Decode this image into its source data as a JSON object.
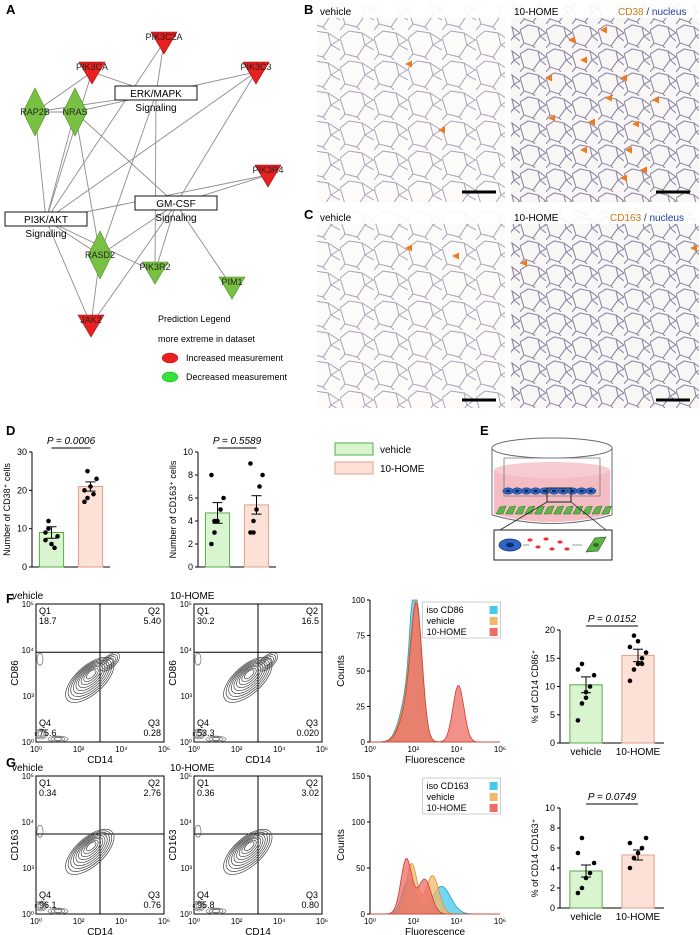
{
  "figure": {
    "panels": [
      "A",
      "B",
      "C",
      "D",
      "E",
      "F",
      "G"
    ],
    "network": {
      "genes_up": [
        {
          "name": "PIK3C2A",
          "x": 164,
          "y": 42
        },
        {
          "name": "PIK3CA",
          "x": 92,
          "y": 72
        },
        {
          "name": "PIK3C3",
          "x": 256,
          "y": 72
        },
        {
          "name": "PIK3R4",
          "x": 268,
          "y": 175
        },
        {
          "name": "JAK2",
          "x": 91,
          "y": 325
        }
      ],
      "genes_down_diamond": [
        {
          "name": "RAP2B",
          "x": 35,
          "y": 112
        },
        {
          "name": "NRAS",
          "x": 75,
          "y": 112
        },
        {
          "name": "RASD2",
          "x": 100,
          "y": 255
        }
      ],
      "genes_down_tri": [
        {
          "name": "PIK3R2",
          "x": 155,
          "y": 272
        },
        {
          "name": "PIM1",
          "x": 232,
          "y": 287
        }
      ],
      "pathways": [
        {
          "name": "ERK/MAPK",
          "sub": "Signaling",
          "x": 156,
          "y": 94
        },
        {
          "name": "GM-CSF",
          "sub": "Signaling",
          "x": 176,
          "y": 204
        },
        {
          "name": "PI3K/AKT",
          "sub": "Signaling",
          "x": 46,
          "y": 220
        }
      ],
      "legend": {
        "title": "Prediction Legend",
        "subtitle": "more extreme in dataset",
        "increased": "Increased measurement",
        "decreased": "Decreased measurement"
      }
    },
    "histology": {
      "vehicle": "vehicle",
      "treated": "10-HOME",
      "b_marker": "CD38",
      "c_marker": "CD163",
      "sep": " / ",
      "nucleus": "nucleus"
    },
    "flow": {
      "f_ylabel": "CD86",
      "g_ylabel": "CD163",
      "xlabel": "CD14",
      "ticks": [
        "10⁰",
        "10²",
        "10⁴",
        "10⁶"
      ],
      "yticks": [
        "10⁰",
        "10³",
        "10⁴",
        "10⁵"
      ],
      "F_vehicle": {
        "title": "vehicle",
        "Q1": "18.7",
        "Q2": "5.40",
        "Q3": "0.28",
        "Q4": "75.6"
      },
      "F_home": {
        "title": "10-HOME",
        "Q1": "30.2",
        "Q2": "16.5",
        "Q3": "0.020",
        "Q4": "53.3"
      },
      "G_vehicle": {
        "title": "vehicle",
        "Q1": "0.34",
        "Q2": "2.76",
        "Q3": "0.76",
        "Q4": "96.1"
      },
      "G_home": {
        "title": "10-HOME",
        "Q1": "0.36",
        "Q2": "3.02",
        "Q3": "0.80",
        "Q4": "95.8"
      },
      "qlabels": [
        "Q1",
        "Q2",
        "Q3",
        "Q4"
      ],
      "hist_ylabel": "Counts",
      "hist_xlabel": "Fluorescence",
      "F_hist_legend": [
        "iso CD86",
        "vehicle",
        "10-HOME"
      ],
      "G_hist_legend": [
        "iso CD163",
        "vehicle",
        "10-HOME"
      ]
    },
    "colors": {
      "up": "#e8201f",
      "down": "#79c142",
      "vehicle_bar": "#d9f5cf",
      "home_bar": "#fde1d6",
      "cd38": "#d4781c",
      "nucleus": "#1f3e9e",
      "iso": "#45c8ec",
      "vehicle_hist": "#f2b96b",
      "home_hist": "#ee6b63"
    }
  },
  "chart_data": [
    {
      "type": "bar",
      "panel": "D-left",
      "categories": [
        "vehicle",
        "10-HOME"
      ],
      "values": [
        9,
        21
      ],
      "errors": [
        1.5,
        1.2
      ],
      "points": [
        [
          7,
          10,
          6,
          5,
          8,
          9,
          12
        ],
        [
          17,
          25,
          21,
          19,
          23,
          20,
          18
        ]
      ],
      "ylabel": "Number of CD38⁺ cells",
      "ylim": [
        0,
        30
      ],
      "yticks": [
        0,
        10,
        20,
        30
      ],
      "annotation": "P = 0.0006"
    },
    {
      "type": "bar",
      "panel": "D-right",
      "categories": [
        "vehicle",
        "10-HOME"
      ],
      "values": [
        4.7,
        5.4
      ],
      "errors": [
        0.9,
        0.8
      ],
      "points": [
        [
          2,
          3,
          4,
          5,
          6,
          8,
          4
        ],
        [
          3,
          4,
          5,
          7,
          8,
          9,
          3
        ]
      ],
      "ylabel": "Number of CD163⁺ cells",
      "ylim": [
        0,
        10
      ],
      "yticks": [
        0,
        2,
        4,
        6,
        8,
        10
      ],
      "annotation": "P = 0.5589"
    },
    {
      "type": "bar",
      "panel": "F-right",
      "categories": [
        "vehicle",
        "10-HOME"
      ],
      "values": [
        10.3,
        15.5
      ],
      "errors": [
        1.4,
        1.1
      ],
      "points": [
        [
          4,
          7,
          9,
          10,
          12,
          13,
          14,
          8
        ],
        [
          11,
          13,
          14,
          15,
          16,
          17,
          19,
          18,
          14
        ]
      ],
      "ylabel": "% of CD14 CD86⁺",
      "ylim": [
        0,
        20
      ],
      "yticks": [
        0,
        5,
        10,
        15,
        20
      ],
      "annotation": "P = 0.0152"
    },
    {
      "type": "bar",
      "panel": "G-right",
      "categories": [
        "vehicle",
        "10-HOME"
      ],
      "values": [
        3.7,
        5.3
      ],
      "errors": [
        0.6,
        0.5
      ],
      "points": [
        [
          1.5,
          2.0,
          3.0,
          3.5,
          4.5,
          5.5,
          7.0
        ],
        [
          4,
          5,
          5.5,
          6,
          7,
          6.5
        ]
      ],
      "ylabel": "% of CD14 CD163⁺",
      "ylim": [
        0,
        10
      ],
      "yticks": [
        0,
        2,
        4,
        6,
        8,
        10
      ],
      "annotation": "P = 0.0749"
    }
  ],
  "legend_d": {
    "vehicle": "vehicle",
    "home": "10-HOME"
  }
}
